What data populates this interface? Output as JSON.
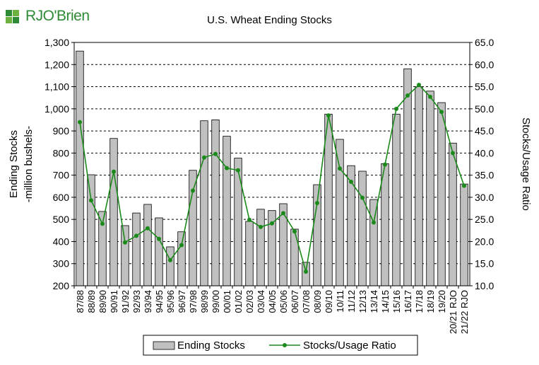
{
  "logo": {
    "text": "RJO'Brien",
    "brand_color": "#2f8a36",
    "icon": "rjobrien-logo-icon"
  },
  "chart_data": {
    "type": "bar+line",
    "title": "U.S. Wheat Ending Stocks",
    "ylabel_left_line1": "Ending Stocks",
    "ylabel_left_line2": "-million bushels-",
    "ylabel_right": "Stocks/Usage Ratio",
    "ylim_left": [
      200,
      1300
    ],
    "yticks_left": [
      "200",
      "300",
      "400",
      "500",
      "600",
      "700",
      "800",
      "900",
      "1,000",
      "1,100",
      "1,200",
      "1,300"
    ],
    "ylim_right": [
      10,
      65
    ],
    "yticks_right": [
      "10.0",
      "15.0",
      "20.0",
      "25.0",
      "30.0",
      "35.0",
      "40.0",
      "45.0",
      "50.0",
      "55.0",
      "60.0",
      "65.0"
    ],
    "categories": [
      "87/88",
      "88/89",
      "89/90",
      "90/91",
      "91/92",
      "92/93",
      "93/94",
      "94/95",
      "95/96",
      "96/97",
      "97/98",
      "98/99",
      "99/00",
      "00/01",
      "01/02",
      "02/03",
      "03/04",
      "04/05",
      "05/06",
      "06/07",
      "07/08",
      "08/09",
      "09/10",
      "10/11",
      "11/12",
      "12/13",
      "13/14",
      "14/15",
      "15/16",
      "16/17",
      "17/18",
      "18/19",
      "19/20",
      "20/21 RJO",
      "21/22 RJO"
    ],
    "series": [
      {
        "name": "Ending Stocks",
        "kind": "bar",
        "color": "#c0c0c0",
        "axis": "left",
        "values": [
          1261,
          702,
          536,
          866,
          472,
          529,
          568,
          507,
          376,
          444,
          722,
          946,
          950,
          876,
          777,
          491,
          546,
          540,
          571,
          456,
          306,
          657,
          976,
          862,
          743,
          718,
          590,
          752,
          976,
          1181,
          1100,
          1080,
          1028,
          845,
          660
        ]
      },
      {
        "name": "Stocks/Usage Ratio",
        "kind": "line",
        "color": "#1a8a1a",
        "axis": "right",
        "values": [
          47.0,
          29.3,
          24.0,
          35.8,
          19.8,
          21.3,
          23.0,
          20.6,
          15.8,
          19.2,
          31.5,
          39.0,
          39.8,
          36.6,
          36.1,
          24.9,
          23.3,
          24.1,
          26.4,
          22.3,
          13.2,
          28.7,
          48.5,
          36.5,
          33.5,
          29.9,
          24.3,
          37.4,
          50.0,
          53.0,
          55.4,
          52.7,
          49.3,
          40.0,
          32.6
        ]
      }
    ],
    "legend_position": "bottom",
    "grid": "horizontal-dashed"
  }
}
